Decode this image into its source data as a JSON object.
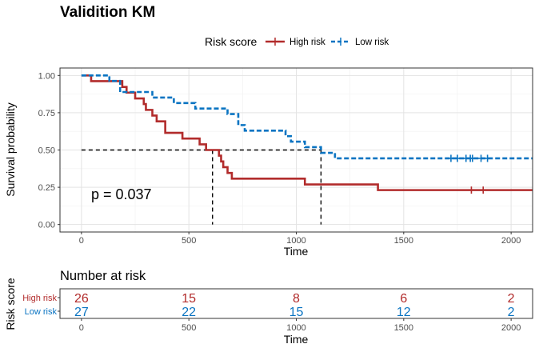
{
  "colors": {
    "high": "#b22c2c",
    "low": "#0a74c2"
  },
  "chart_data": [
    {
      "type": "line",
      "subtype": "kaplan-meier",
      "title": "Validition KM",
      "xlabel": "Time",
      "ylabel": "Survival probability",
      "xlim": [
        -100,
        2100
      ],
      "ylim": [
        -0.05,
        1.05
      ],
      "x_ticks": [
        0,
        500,
        1000,
        1500,
        2000
      ],
      "y_ticks": [
        0.0,
        0.25,
        0.5,
        0.75,
        1.0
      ],
      "y_tick_labels": [
        "0.00",
        "0.25",
        "0.50",
        "0.75",
        "1.00"
      ],
      "grid": true,
      "legend": {
        "title": "Risk score",
        "position": "top",
        "entries": [
          "High risk",
          "Low risk"
        ]
      },
      "annotation": "p = 0.037",
      "median_line": {
        "y": 0.5,
        "x_high": 610,
        "x_low": 1115
      },
      "series": [
        {
          "name": "High risk",
          "color": "#b22c2c",
          "style": "solid",
          "steps": [
            [
              0,
              1.0
            ],
            [
              45,
              0.962
            ],
            [
              190,
              0.923
            ],
            [
              210,
              0.885
            ],
            [
              250,
              0.846
            ],
            [
              290,
              0.808
            ],
            [
              300,
              0.769
            ],
            [
              330,
              0.731
            ],
            [
              350,
              0.692
            ],
            [
              390,
              0.615
            ],
            [
              470,
              0.577
            ],
            [
              550,
              0.538
            ],
            [
              580,
              0.5
            ],
            [
              640,
              0.462
            ],
            [
              650,
              0.423
            ],
            [
              660,
              0.385
            ],
            [
              680,
              0.346
            ],
            [
              700,
              0.308
            ],
            [
              1040,
              0.269
            ],
            [
              1380,
              0.231
            ],
            [
              2100,
              0.231
            ]
          ],
          "censored": [
            [
              1815,
              0.231
            ],
            [
              1870,
              0.231
            ]
          ]
        },
        {
          "name": "Low risk",
          "color": "#0a74c2",
          "style": "dashed",
          "steps": [
            [
              0,
              1.0
            ],
            [
              130,
              0.963
            ],
            [
              180,
              0.889
            ],
            [
              330,
              0.852
            ],
            [
              430,
              0.815
            ],
            [
              530,
              0.778
            ],
            [
              680,
              0.741
            ],
            [
              730,
              0.667
            ],
            [
              760,
              0.63
            ],
            [
              950,
              0.593
            ],
            [
              975,
              0.556
            ],
            [
              1040,
              0.519
            ],
            [
              1115,
              0.481
            ],
            [
              1180,
              0.444
            ],
            [
              2100,
              0.444
            ]
          ],
          "censored": [
            [
              1720,
              0.444
            ],
            [
              1750,
              0.444
            ],
            [
              1790,
              0.444
            ],
            [
              1810,
              0.444
            ],
            [
              1820,
              0.444
            ],
            [
              1860,
              0.444
            ],
            [
              1890,
              0.444
            ]
          ]
        }
      ]
    },
    {
      "type": "table",
      "title": "Number at risk",
      "xlabel": "Time",
      "ylabel": "Risk score",
      "x_ticks": [
        0,
        500,
        1000,
        1500,
        2000
      ],
      "rows": [
        {
          "name": "High risk",
          "color": "#b22c2c",
          "values": [
            26,
            15,
            8,
            6,
            2
          ]
        },
        {
          "name": "Low risk",
          "color": "#0a74c2",
          "values": [
            27,
            22,
            15,
            12,
            2
          ]
        }
      ]
    }
  ]
}
